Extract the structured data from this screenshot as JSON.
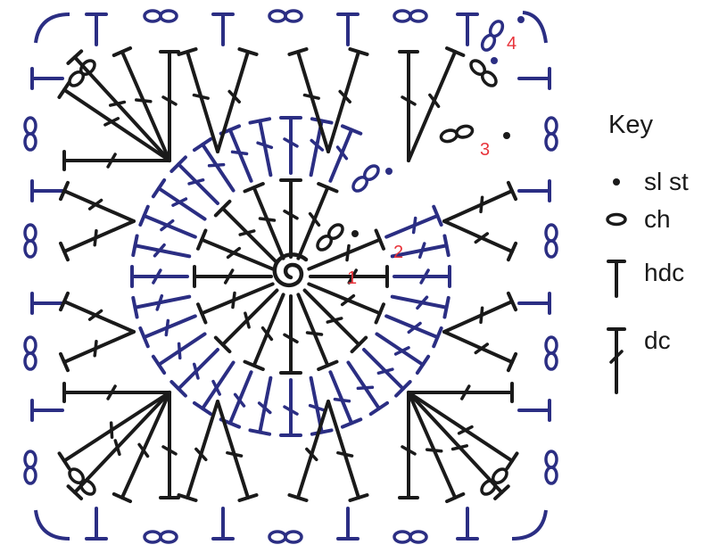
{
  "colors": {
    "black": "#1a1a1a",
    "blue": "#2b2e83",
    "red": "#e8333a",
    "background": "#ffffff"
  },
  "diagram": {
    "round_labels": [
      "1",
      "2",
      "3",
      "4"
    ],
    "symbols": {
      "sl_st": "dot-icon",
      "ch": "oval-icon",
      "hdc": "t-bar-icon",
      "dc": "t-bar-slash-icon"
    }
  },
  "key": {
    "title": "Key",
    "items": [
      {
        "symbol": "dot-icon",
        "label": "sl st"
      },
      {
        "symbol": "oval-icon",
        "label": "ch"
      },
      {
        "symbol": "t-bar-icon",
        "label": "hdc"
      },
      {
        "symbol": "t-bar-slash-icon",
        "label": "dc"
      }
    ]
  }
}
